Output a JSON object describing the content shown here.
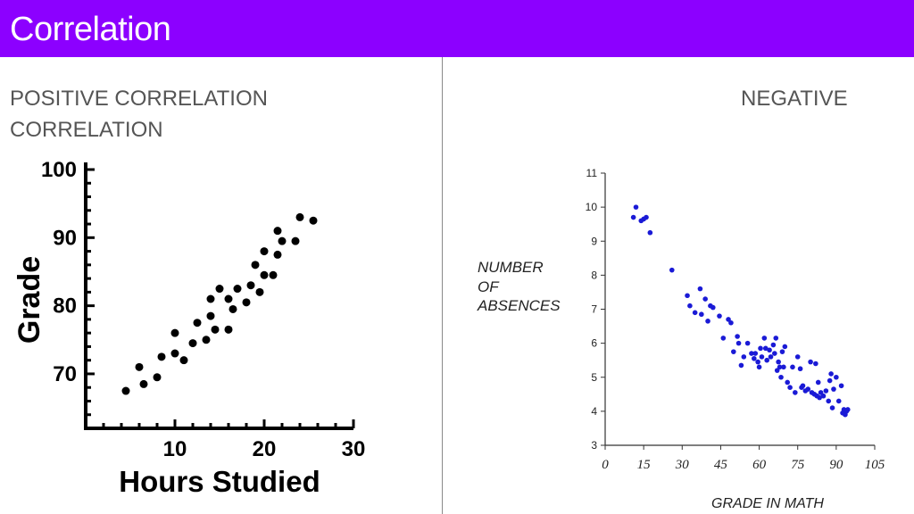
{
  "header": {
    "title": "Correlation"
  },
  "left_heading": {
    "line1": "POSITIVE CORRELATION",
    "line2": "CORRELATION"
  },
  "right_heading": {
    "text": "NEGATIVE"
  },
  "colors": {
    "title_bar": "#8c00ff",
    "title_text": "#ffffff",
    "heading": "#555555",
    "left_points": "#000000",
    "right_points": "#1a1ad6"
  },
  "chart_data": [
    {
      "type": "scatter",
      "title": "",
      "xlabel": "Hours Studied",
      "ylabel": "Grade",
      "xlim": [
        0,
        30
      ],
      "ylim": [
        62,
        100
      ],
      "x_ticks": [
        "10",
        "20",
        "30"
      ],
      "y_ticks": [
        "100",
        "90",
        "80",
        "70"
      ],
      "points": [
        [
          4.5,
          67.5
        ],
        [
          6,
          71
        ],
        [
          6.5,
          68.5
        ],
        [
          8,
          69.5
        ],
        [
          8.5,
          72.5
        ],
        [
          10,
          73
        ],
        [
          10,
          76
        ],
        [
          11,
          72
        ],
        [
          12,
          74.5
        ],
        [
          12.5,
          77.5
        ],
        [
          13.5,
          75
        ],
        [
          14,
          78.5
        ],
        [
          14.5,
          76.5
        ],
        [
          14,
          81
        ],
        [
          15,
          82.5
        ],
        [
          16,
          76.5
        ],
        [
          16,
          81
        ],
        [
          16.5,
          79.5
        ],
        [
          17,
          82.5
        ],
        [
          18,
          80.5
        ],
        [
          18.5,
          83
        ],
        [
          19,
          86
        ],
        [
          19.5,
          82
        ],
        [
          20,
          84.5
        ],
        [
          20,
          88
        ],
        [
          21,
          84.5
        ],
        [
          21.5,
          87.5
        ],
        [
          21.5,
          91
        ],
        [
          22,
          89.5
        ],
        [
          23.5,
          89.5
        ],
        [
          24,
          93
        ],
        [
          25.5,
          92.5
        ]
      ]
    },
    {
      "type": "scatter",
      "title": "",
      "xlabel": "GRADE IN MATH",
      "ylabel": "NUMBER OF ABSENCES",
      "xlim": [
        0,
        105
      ],
      "ylim": [
        3,
        11
      ],
      "x_ticks": [
        "0",
        "15",
        "30",
        "45",
        "60",
        "75",
        "90",
        "105"
      ],
      "y_ticks": [
        "11",
        "10",
        "9",
        "8",
        "7",
        "6",
        "5",
        "4",
        "3"
      ],
      "points": [
        [
          11,
          9.7
        ],
        [
          12,
          10
        ],
        [
          14,
          9.6
        ],
        [
          15,
          9.65
        ],
        [
          16,
          9.7
        ],
        [
          17.5,
          9.25
        ],
        [
          26,
          8.15
        ],
        [
          32,
          7.4
        ],
        [
          33,
          7.1
        ],
        [
          35,
          6.9
        ],
        [
          37,
          7.6
        ],
        [
          37.5,
          6.85
        ],
        [
          39,
          7.3
        ],
        [
          40,
          6.65
        ],
        [
          41,
          7.1
        ],
        [
          42,
          7.05
        ],
        [
          44.5,
          6.8
        ],
        [
          46,
          6.15
        ],
        [
          48,
          6.7
        ],
        [
          49,
          6.6
        ],
        [
          50,
          5.75
        ],
        [
          51.5,
          6.2
        ],
        [
          52,
          6.0
        ],
        [
          53,
          5.35
        ],
        [
          54,
          5.6
        ],
        [
          55.5,
          6.0
        ],
        [
          57,
          5.7
        ],
        [
          58,
          5.55
        ],
        [
          58.5,
          5.7
        ],
        [
          59.5,
          5.45
        ],
        [
          60,
          5.3
        ],
        [
          60.5,
          5.85
        ],
        [
          61,
          5.6
        ],
        [
          62,
          6.15
        ],
        [
          62.5,
          5.85
        ],
        [
          63,
          5.5
        ],
        [
          64,
          5.8
        ],
        [
          64.5,
          5.6
        ],
        [
          65.5,
          5.95
        ],
        [
          66,
          5.7
        ],
        [
          66.5,
          6.15
        ],
        [
          67,
          5.2
        ],
        [
          67.5,
          5.45
        ],
        [
          68,
          5.3
        ],
        [
          68.5,
          5.0
        ],
        [
          69,
          5.75
        ],
        [
          69.5,
          5.3
        ],
        [
          70,
          5.9
        ],
        [
          71,
          4.85
        ],
        [
          72,
          4.7
        ],
        [
          73,
          5.3
        ],
        [
          74,
          4.55
        ],
        [
          75,
          5.6
        ],
        [
          76,
          5.25
        ],
        [
          76.5,
          4.7
        ],
        [
          77,
          4.75
        ],
        [
          78,
          4.6
        ],
        [
          79,
          4.65
        ],
        [
          80,
          5.45
        ],
        [
          80.5,
          4.55
        ],
        [
          81.5,
          4.5
        ],
        [
          82,
          5.4
        ],
        [
          82.5,
          4.45
        ],
        [
          83,
          4.85
        ],
        [
          83.5,
          4.4
        ],
        [
          84,
          4.55
        ],
        [
          85,
          4.45
        ],
        [
          86,
          4.6
        ],
        [
          87,
          4.3
        ],
        [
          87.5,
          4.9
        ],
        [
          88,
          5.1
        ],
        [
          88.5,
          4.1
        ],
        [
          89,
          4.65
        ],
        [
          90,
          5.0
        ],
        [
          91,
          4.3
        ],
        [
          92,
          4.75
        ],
        [
          92.5,
          3.95
        ],
        [
          93,
          4.05
        ],
        [
          93.5,
          3.9
        ],
        [
          94,
          4.0
        ],
        [
          94.5,
          4.05
        ]
      ]
    }
  ]
}
